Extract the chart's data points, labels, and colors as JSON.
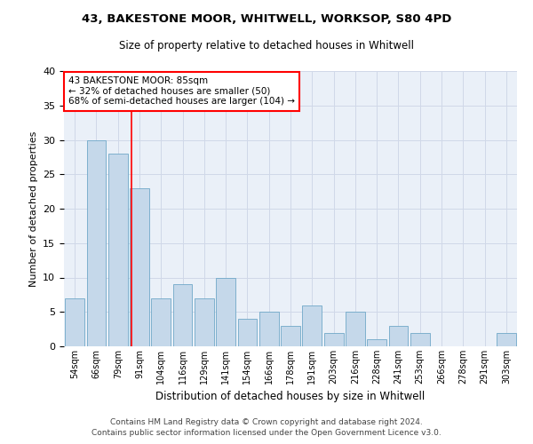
{
  "title1": "43, BAKESTONE MOOR, WHITWELL, WORKSOP, S80 4PD",
  "title2": "Size of property relative to detached houses in Whitwell",
  "xlabel": "Distribution of detached houses by size in Whitwell",
  "ylabel": "Number of detached properties",
  "categories": [
    "54sqm",
    "66sqm",
    "79sqm",
    "91sqm",
    "104sqm",
    "116sqm",
    "129sqm",
    "141sqm",
    "154sqm",
    "166sqm",
    "178sqm",
    "191sqm",
    "203sqm",
    "216sqm",
    "228sqm",
    "241sqm",
    "253sqm",
    "266sqm",
    "278sqm",
    "291sqm",
    "303sqm"
  ],
  "values": [
    7,
    30,
    28,
    23,
    7,
    9,
    7,
    10,
    4,
    5,
    3,
    6,
    2,
    5,
    1,
    3,
    2,
    0,
    0,
    0,
    2
  ],
  "bar_color": "#c5d8ea",
  "bar_edge_color": "#6fa8c8",
  "red_line_x": 2.62,
  "annotation_line1": "43 BAKESTONE MOOR: 85sqm",
  "annotation_line2": "← 32% of detached houses are smaller (50)",
  "annotation_line3": "68% of semi-detached houses are larger (104) →",
  "annotation_box_color": "white",
  "annotation_box_edge_color": "red",
  "footer1": "Contains HM Land Registry data © Crown copyright and database right 2024.",
  "footer2": "Contains public sector information licensed under the Open Government Licence v3.0.",
  "ylim": [
    0,
    40
  ],
  "yticks": [
    0,
    5,
    10,
    15,
    20,
    25,
    30,
    35,
    40
  ],
  "grid_color": "#d0d8e8",
  "background_color": "#eaf0f8"
}
